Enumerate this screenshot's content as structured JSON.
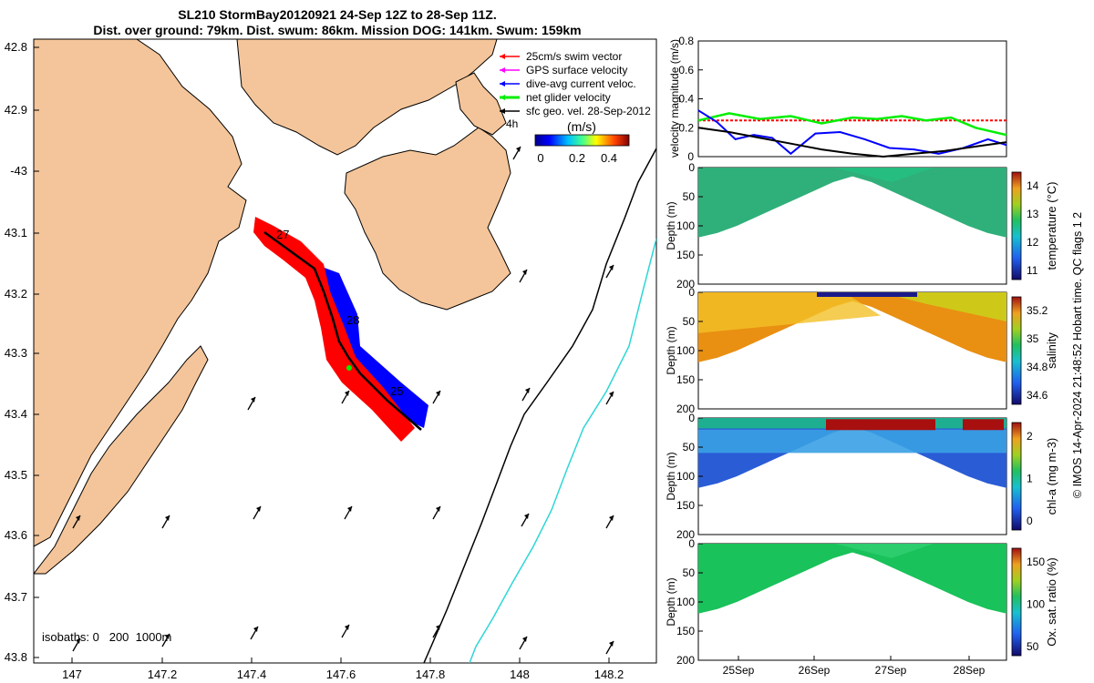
{
  "title_line1": "SL210 StormBay20120921 24-Sep 12Z to 28-Sep 11Z.",
  "title_line2": "Dist. over ground: 79km. Dist. swum: 86km. Mission DOG: 141km. Swum: 159km",
  "credit": "© IMOS 14-Apr-2024 21:48:52 Hobart time. QC flags 1 2",
  "colors": {
    "land": "#f4c59a",
    "red": "#ff0000",
    "blue": "#0000ff",
    "green": "#00ee00",
    "black": "#000000",
    "cyan": "#2ed6d6"
  },
  "chart_data": [
    {
      "type": "map",
      "lon_ticks": [
        "147",
        "147.2",
        "147.4",
        "147.6",
        "147.8",
        "148",
        "148.2"
      ],
      "lat_ticks": [
        "42.8",
        "42.9",
        "-43",
        "43.1",
        "43.2",
        "43.3",
        "43.4",
        "43.5",
        "43.6",
        "43.7",
        "43.8"
      ],
      "legend": [
        {
          "label": "25cm/s swim vector",
          "color": "#ff0000"
        },
        {
          "label": "GPS surface velocity",
          "color": "#ff00ff"
        },
        {
          "label": "dive-avg current veloc.",
          "color": "#0000ff"
        },
        {
          "label": "net glider velocity",
          "color": "#00ee00"
        },
        {
          "label": "sfc geo. vel. 28-Sep-2012",
          "color": "#000000"
        }
      ],
      "legend_extra": "4h",
      "colorbar_title": "(m/s)",
      "colorbar_ticks": [
        "0",
        "0.2",
        "0.4"
      ],
      "isobaths_label": "isobaths: 0   200  1000m",
      "track_labels": [
        "27",
        "28",
        "25"
      ]
    },
    {
      "type": "line",
      "ylabel": "velocity magnitude (m/s)",
      "y_ticks": [
        "0",
        "0.2",
        "0.4",
        "0.6",
        "0.8"
      ],
      "ylim": [
        0,
        0.8
      ],
      "series": [
        {
          "color": "#ff0000",
          "x": [
            0,
            1
          ],
          "values": [
            0.25,
            0.25
          ]
        },
        {
          "color": "#00ee00",
          "x": [
            0,
            0.1,
            0.2,
            0.3,
            0.4,
            0.5,
            0.58,
            0.66,
            0.74,
            0.82,
            0.9,
            1.0
          ],
          "values": [
            0.25,
            0.3,
            0.26,
            0.28,
            0.23,
            0.27,
            0.26,
            0.28,
            0.25,
            0.27,
            0.2,
            0.15
          ]
        },
        {
          "color": "#0000ff",
          "x": [
            0,
            0.06,
            0.12,
            0.18,
            0.24,
            0.3,
            0.38,
            0.46,
            0.54,
            0.62,
            0.7,
            0.78,
            0.86,
            0.94,
            1.0
          ],
          "values": [
            0.32,
            0.24,
            0.12,
            0.15,
            0.13,
            0.02,
            0.16,
            0.17,
            0.12,
            0.06,
            0.05,
            0.02,
            0.06,
            0.12,
            0.08
          ]
        },
        {
          "color": "#000000",
          "x": [
            0,
            0.1,
            0.2,
            0.3,
            0.4,
            0.5,
            0.6,
            0.7,
            0.8,
            0.9,
            1.0
          ],
          "values": [
            0.2,
            0.17,
            0.13,
            0.09,
            0.05,
            0.02,
            0.0,
            0.02,
            0.04,
            0.07,
            0.1
          ]
        }
      ]
    },
    {
      "type": "heatmap",
      "ylabel": "Depth (m)",
      "y_ticks": [
        "0",
        "50",
        "100",
        "150",
        "200"
      ],
      "colorbar_label": "temperature (°C)",
      "colorbar_ticks": [
        "14",
        "13",
        "12",
        "11"
      ],
      "fill_colors": [
        "#2fb07a",
        "#24c282"
      ]
    },
    {
      "type": "heatmap",
      "ylabel": "Depth (m)",
      "y_ticks": [
        "0",
        "50",
        "100",
        "150",
        "200"
      ],
      "colorbar_label": "salinity",
      "colorbar_ticks": [
        "35.2",
        "35",
        "34.8",
        "34.6"
      ],
      "fill_colors": [
        "#e98f12",
        "#f2c027",
        "#c9d31a"
      ]
    },
    {
      "type": "heatmap",
      "ylabel": "Depth (m)",
      "y_ticks": [
        "0",
        "50",
        "100",
        "150",
        "200"
      ],
      "colorbar_label": "chl-a (mg m-3)",
      "colorbar_ticks": [
        "2",
        "1",
        "0"
      ],
      "fill_colors": [
        "#2a5cd6",
        "#3aa0e4",
        "#1db88a",
        "#a80f0f"
      ]
    },
    {
      "type": "heatmap",
      "ylabel": "Depth (m)",
      "y_ticks": [
        "0",
        "50",
        "100",
        "150",
        "200"
      ],
      "x_ticks": [
        "25Sep",
        "26Sep",
        "27Sep",
        "28Sep"
      ],
      "colorbar_label": "Ox. sat. ratio (%)",
      "colorbar_ticks": [
        "150",
        "100",
        "50"
      ],
      "fill_colors": [
        "#19c25a",
        "#2fd070"
      ]
    }
  ]
}
